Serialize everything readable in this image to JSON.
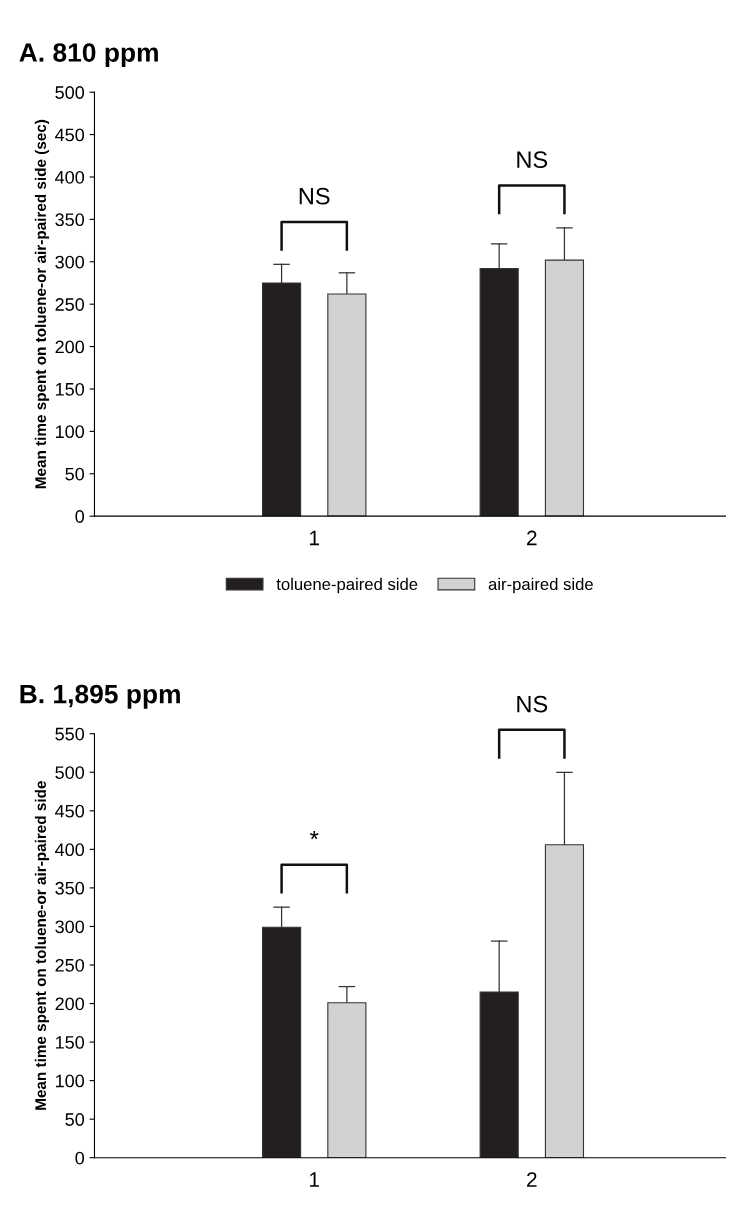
{
  "chart_data": [
    {
      "type": "bar",
      "title": "A. 810 ppm",
      "ylabel": "Mean time spent on toluene-or air-paired side (sec)",
      "categories": [
        "1",
        "2"
      ],
      "ylim": [
        0,
        500
      ],
      "yticks": [
        0,
        50,
        100,
        150,
        200,
        250,
        300,
        350,
        400,
        450,
        500
      ],
      "grid": false,
      "legend": "bottom",
      "series": [
        {
          "name": "toluene-paired side",
          "color": "#231f20",
          "values": [
            275,
            292
          ],
          "errors": [
            [
              275,
              297
            ],
            [
              292,
              321
            ]
          ]
        },
        {
          "name": "air-paired side",
          "color": "#d1d2d4",
          "values": [
            262,
            302
          ],
          "errors": [
            [
              262,
              287
            ],
            [
              302,
              340
            ]
          ]
        }
      ],
      "annotations": [
        "NS",
        "NS"
      ]
    },
    {
      "type": "bar",
      "title": "B. 1,895 ppm",
      "ylabel": "Mean time spent on toluene-or air-paired side",
      "categories": [
        "1",
        "2"
      ],
      "ylim": [
        0,
        550
      ],
      "yticks": [
        0,
        50,
        100,
        150,
        200,
        250,
        300,
        350,
        400,
        450,
        500,
        550
      ],
      "grid": false,
      "series": [
        {
          "color": "#231f20",
          "values": [
            299,
            215
          ],
          "errors": [
            [
              299,
              325
            ],
            [
              215,
              281
            ]
          ]
        },
        {
          "color": "#d1d2d4",
          "values": [
            201,
            406
          ],
          "errors": [
            [
              201,
              222
            ],
            [
              406,
              500
            ]
          ]
        }
      ],
      "annotations": [
        "*",
        "NS"
      ]
    }
  ]
}
